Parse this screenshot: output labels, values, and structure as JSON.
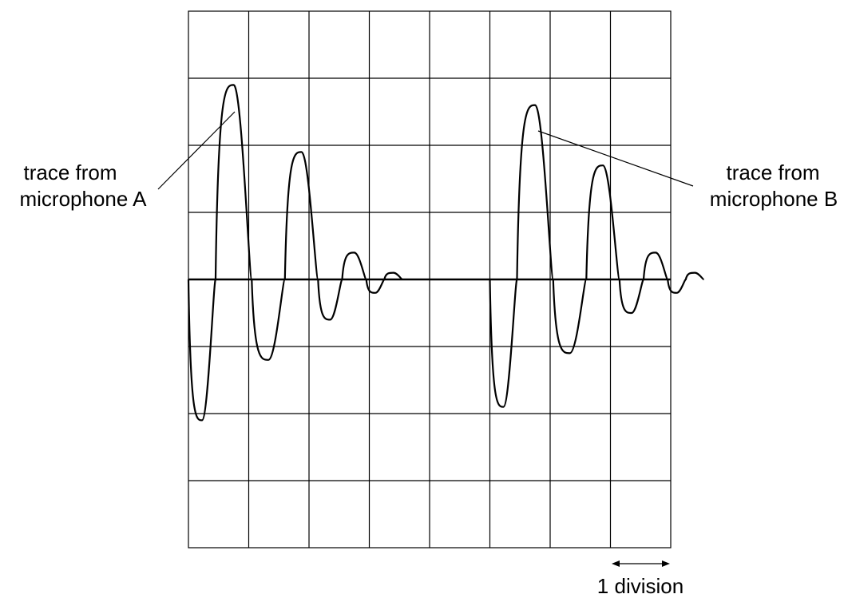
{
  "annotations": {
    "trace_a": {
      "line1": "trace from",
      "line2": "microphone A"
    },
    "trace_b": {
      "line1": "trace from",
      "line2": "microphone B"
    },
    "scale_label": "1 division"
  },
  "screen": {
    "columns": 8,
    "rows": 8
  },
  "traces": [
    {
      "id": "A",
      "start_division": 0,
      "peaks_divisions": [
        -2.1,
        2.9,
        -1.2,
        1.9,
        -0.6,
        0.4,
        -0.2,
        0.1
      ]
    },
    {
      "id": "B",
      "start_division": 5,
      "peaks_divisions": [
        -1.9,
        2.6,
        -1.1,
        1.7,
        -0.5,
        0.4,
        -0.2,
        0.1
      ]
    }
  ]
}
